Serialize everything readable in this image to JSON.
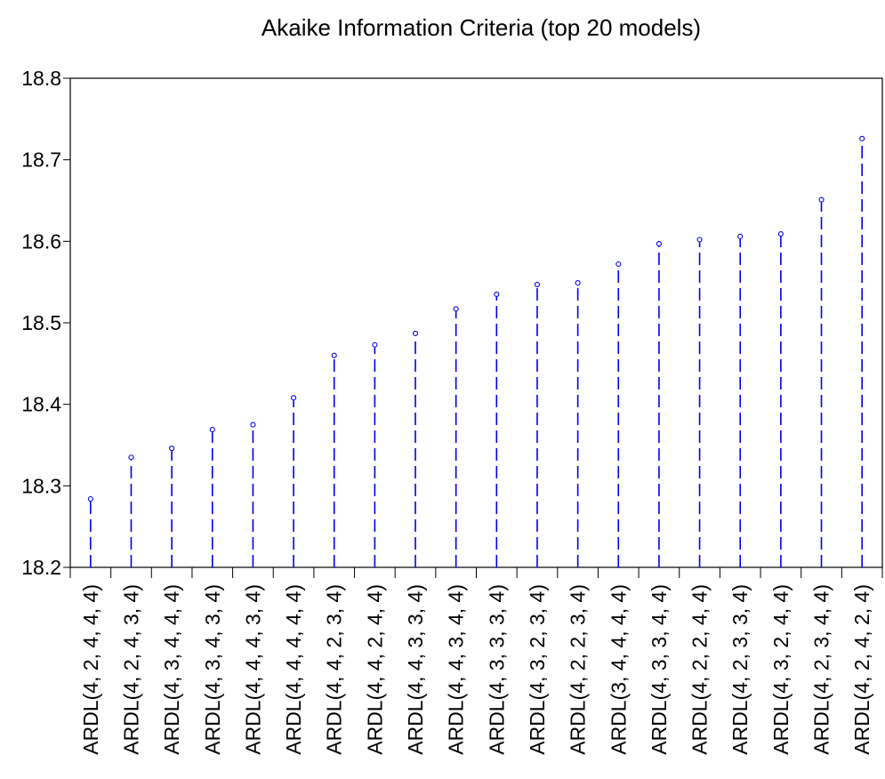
{
  "chart_data": {
    "type": "scatter",
    "style": "dashed-stem",
    "title": "Akaike Information Criteria (top 20 models)",
    "xlabel": "",
    "ylabel": "",
    "ylim": [
      18.2,
      18.8
    ],
    "yticks": [
      "18.2",
      "18.3",
      "18.4",
      "18.5",
      "18.6",
      "18.7",
      "18.8"
    ],
    "grid": false,
    "categories": [
      "ARDL(4, 2, 4, 4, 4)",
      "ARDL(4, 2, 4, 3, 4)",
      "ARDL(4, 3, 4, 4, 4)",
      "ARDL(4, 3, 4, 3, 4)",
      "ARDL(4, 4, 4, 3, 4)",
      "ARDL(4, 4, 4, 4, 4)",
      "ARDL(4, 4, 2, 3, 4)",
      "ARDL(4, 4, 2, 4, 4)",
      "ARDL(4, 4, 3, 3, 4)",
      "ARDL(4, 4, 3, 4, 4)",
      "ARDL(4, 3, 3, 3, 4)",
      "ARDL(4, 3, 2, 3, 4)",
      "ARDL(4, 2, 2, 3, 4)",
      "ARDL(3, 4, 4, 4, 4)",
      "ARDL(4, 3, 3, 4, 4)",
      "ARDL(4, 2, 2, 4, 4)",
      "ARDL(4, 2, 3, 3, 4)",
      "ARDL(4, 3, 2, 4, 4)",
      "ARDL(4, 2, 3, 4, 4)",
      "ARDL(4, 2, 4, 2, 4)"
    ],
    "values": [
      18.284,
      18.335,
      18.346,
      18.369,
      18.375,
      18.408,
      18.46,
      18.473,
      18.487,
      18.517,
      18.535,
      18.547,
      18.549,
      18.572,
      18.597,
      18.602,
      18.606,
      18.609,
      18.651,
      18.726
    ],
    "colors": {
      "series": "#0000ee",
      "axis": "#000000"
    }
  }
}
